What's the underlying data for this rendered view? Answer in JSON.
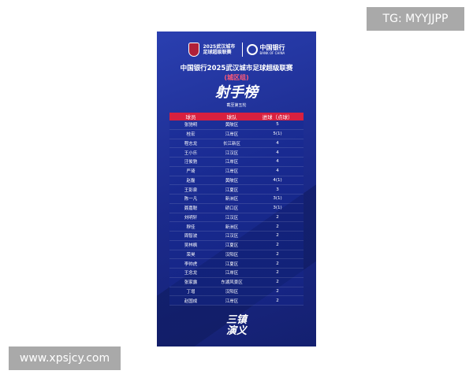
{
  "watermarks": {
    "tg": "TG: MYYJJPP",
    "site": "www.xpsjcy.com"
  },
  "poster": {
    "league_logo_text": "2025武汉城市足球超级联赛",
    "sponsor_cn": "中国银行",
    "sponsor_en": "BANK OF CHINA",
    "title": "中国银行2025武汉城市足球超级联赛",
    "group": "(城区组)",
    "heading": "射手榜",
    "round": "截至第五轮",
    "brand": [
      "三镇",
      "演义"
    ],
    "colors": {
      "background": "#1b2a8c",
      "header": "#d8203f",
      "accent": "#ff5a78"
    },
    "table": {
      "headers": [
        "球员",
        "球队",
        "进球（点球）"
      ],
      "rows": [
        [
          "张驰明",
          "黄陂区",
          "5"
        ],
        [
          "桂宏",
          "江岸区",
          "5(1)"
        ],
        [
          "程志龙",
          "长江新区",
          "4"
        ],
        [
          "王小乐",
          "江汉区",
          "4"
        ],
        [
          "汪俊驰",
          "江岸区",
          "4"
        ],
        [
          "严琦",
          "江岸区",
          "4"
        ],
        [
          "赵磊",
          "黄陂区",
          "4(1)"
        ],
        [
          "王彭泉",
          "江夏区",
          "3"
        ],
        [
          "陈一凡",
          "新洲区",
          "3(1)"
        ],
        [
          "聂嘉聪",
          "硚口区",
          "3(1)"
        ],
        [
          "刘明轩",
          "江汉区",
          "2"
        ],
        [
          "穆佳",
          "新洲区",
          "2"
        ],
        [
          "周智波",
          "江汉区",
          "2"
        ],
        [
          "吴林枫",
          "江夏区",
          "2"
        ],
        [
          "荣昊",
          "汉阳区",
          "2"
        ],
        [
          "李帅虎",
          "江夏区",
          "2"
        ],
        [
          "王念龙",
          "江岸区",
          "2"
        ],
        [
          "张家露",
          "东湖风景区",
          "2"
        ],
        [
          "丁增",
          "汉阳区",
          "2"
        ],
        [
          "赵国成",
          "江岸区",
          "2"
        ]
      ]
    }
  }
}
